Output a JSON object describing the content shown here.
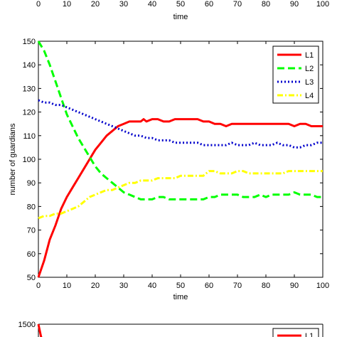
{
  "chart_data": [
    {
      "type": "line",
      "partial": "top",
      "xlabel": "time",
      "xlim": [
        0,
        100
      ],
      "xticks": [
        "0",
        "10",
        "20",
        "30",
        "40",
        "50",
        "60",
        "70",
        "80",
        "90",
        "100"
      ]
    },
    {
      "type": "line",
      "xlabel": "time",
      "ylabel": "number of guardians",
      "xlim": [
        0,
        100
      ],
      "ylim": [
        50,
        150
      ],
      "xticks": [
        "0",
        "10",
        "20",
        "30",
        "40",
        "50",
        "60",
        "70",
        "80",
        "90",
        "100"
      ],
      "yticks": [
        "50",
        "60",
        "70",
        "80",
        "90",
        "100",
        "110",
        "120",
        "130",
        "140",
        "150"
      ],
      "legend_position": "top-right",
      "grid": false,
      "series": [
        {
          "name": "L1",
          "color": "#ff0000",
          "style": "solid",
          "x": [
            0,
            2,
            4,
            6,
            8,
            10,
            12,
            14,
            16,
            18,
            20,
            22,
            24,
            26,
            28,
            30,
            32,
            34,
            36,
            37,
            38,
            40,
            42,
            44,
            46,
            48,
            50,
            52,
            54,
            56,
            58,
            60,
            62,
            64,
            66,
            68,
            70,
            72,
            74,
            76,
            78,
            80,
            82,
            84,
            86,
            88,
            90,
            92,
            94,
            96,
            98,
            100
          ],
          "y": [
            50,
            57,
            66,
            72,
            79,
            84,
            88,
            92,
            96,
            100,
            104,
            107,
            110,
            112,
            114,
            115,
            116,
            116,
            116,
            117,
            116,
            117,
            117,
            116,
            116,
            117,
            117,
            117,
            117,
            117,
            116,
            116,
            115,
            115,
            114,
            115,
            115,
            115,
            115,
            115,
            115,
            115,
            115,
            115,
            115,
            115,
            114,
            115,
            115,
            114,
            114,
            114
          ]
        },
        {
          "name": "L2",
          "color": "#00ff00",
          "style": "dashed",
          "x": [
            0,
            2,
            4,
            6,
            8,
            10,
            12,
            14,
            16,
            18,
            20,
            22,
            24,
            26,
            28,
            30,
            32,
            34,
            36,
            38,
            40,
            42,
            44,
            46,
            48,
            50,
            52,
            54,
            56,
            58,
            60,
            62,
            64,
            66,
            68,
            70,
            72,
            74,
            76,
            78,
            80,
            82,
            84,
            86,
            88,
            90,
            92,
            94,
            96,
            98,
            100
          ],
          "y": [
            150,
            146,
            140,
            133,
            126,
            119,
            114,
            109,
            105,
            101,
            97,
            94,
            92,
            90,
            88,
            86,
            85,
            84,
            83,
            83,
            83,
            84,
            84,
            83,
            83,
            83,
            83,
            83,
            83,
            83,
            84,
            84,
            85,
            85,
            85,
            85,
            84,
            84,
            84,
            85,
            84,
            85,
            85,
            85,
            85,
            86,
            85,
            85,
            85,
            84,
            84
          ]
        },
        {
          "name": "L3",
          "color": "#0000cc",
          "style": "dotted",
          "x": [
            0,
            2,
            4,
            6,
            8,
            10,
            12,
            14,
            16,
            18,
            20,
            22,
            24,
            26,
            28,
            30,
            32,
            34,
            36,
            38,
            40,
            42,
            44,
            46,
            48,
            50,
            52,
            54,
            56,
            58,
            60,
            62,
            64,
            66,
            68,
            70,
            72,
            74,
            76,
            78,
            80,
            82,
            84,
            86,
            88,
            90,
            92,
            94,
            96,
            98,
            100
          ],
          "y": [
            125,
            124,
            124,
            123,
            123,
            122,
            121,
            120,
            119,
            118,
            117,
            116,
            115,
            114,
            113,
            112,
            111,
            110,
            110,
            109,
            109,
            108,
            108,
            108,
            107,
            107,
            107,
            107,
            107,
            106,
            106,
            106,
            106,
            106,
            107,
            106,
            106,
            106,
            107,
            106,
            106,
            106,
            107,
            106,
            106,
            105,
            105,
            106,
            106,
            107,
            107
          ]
        },
        {
          "name": "L4",
          "color": "#ffff00",
          "style": "dashdot",
          "x": [
            0,
            2,
            4,
            6,
            8,
            10,
            12,
            14,
            16,
            18,
            20,
            22,
            24,
            26,
            28,
            30,
            32,
            34,
            36,
            38,
            40,
            42,
            44,
            46,
            48,
            50,
            52,
            54,
            56,
            58,
            60,
            62,
            64,
            66,
            68,
            70,
            72,
            74,
            76,
            78,
            80,
            82,
            84,
            86,
            88,
            90,
            92,
            94,
            96,
            98,
            100
          ],
          "y": [
            75,
            76,
            76,
            77,
            77,
            78,
            79,
            80,
            82,
            84,
            85,
            86,
            87,
            87,
            88,
            89,
            90,
            90,
            91,
            91,
            91,
            92,
            92,
            92,
            92,
            93,
            93,
            93,
            93,
            93,
            95,
            95,
            94,
            94,
            94,
            95,
            95,
            94,
            94,
            94,
            94,
            94,
            94,
            94,
            95,
            95,
            95,
            95,
            95,
            95,
            95
          ]
        }
      ]
    },
    {
      "type": "line",
      "partial": "bottom",
      "yticks_visible": [
        "1500"
      ],
      "legend_visible": [
        "L1"
      ],
      "series": [
        {
          "name": "L1",
          "color": "#ff0000",
          "style": "solid",
          "x": [
            0,
            1
          ],
          "y": [
            1500,
            1470
          ]
        }
      ]
    }
  ]
}
